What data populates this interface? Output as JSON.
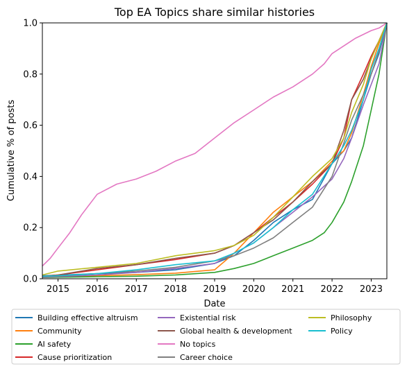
{
  "chart_data": {
    "type": "line",
    "title": "Top EA Topics share similar histories",
    "xlabel": "Date",
    "ylabel": "Cumulative % of posts",
    "xlim": [
      2014.6,
      2023.4
    ],
    "ylim": [
      0,
      1.0
    ],
    "xticks": [
      2015,
      2016,
      2017,
      2018,
      2019,
      2020,
      2021,
      2022,
      2023
    ],
    "yticks": [
      0.0,
      0.2,
      0.4,
      0.6,
      0.8,
      1.0
    ],
    "grid": false,
    "legend_position": "bottom, outside plot, 3 columns",
    "series": [
      {
        "name": "Building effective altruism",
        "color": "#1f77b4",
        "x": [
          2014.6,
          2015,
          2016,
          2017,
          2018,
          2019,
          2019.5,
          2020,
          2020.5,
          2021,
          2021.5,
          2022,
          2022.3,
          2022.5,
          2022.8,
          2023,
          2023.2,
          2023.4
        ],
        "y": [
          0.012,
          0.014,
          0.02,
          0.025,
          0.035,
          0.06,
          0.09,
          0.15,
          0.22,
          0.27,
          0.31,
          0.45,
          0.5,
          0.55,
          0.7,
          0.8,
          0.88,
          1.0
        ]
      },
      {
        "name": "Community",
        "color": "#ff7f0e",
        "x": [
          2014.6,
          2015,
          2016,
          2017,
          2018,
          2019,
          2019.5,
          2020,
          2020.5,
          2021,
          2021.5,
          2022,
          2022.3,
          2022.5,
          2022.8,
          2023,
          2023.2,
          2023.4
        ],
        "y": [
          0.006,
          0.008,
          0.012,
          0.016,
          0.022,
          0.035,
          0.1,
          0.18,
          0.26,
          0.32,
          0.38,
          0.46,
          0.5,
          0.57,
          0.72,
          0.83,
          0.92,
          1.0
        ]
      },
      {
        "name": "AI safety",
        "color": "#2ca02c",
        "x": [
          2014.6,
          2015,
          2016,
          2017,
          2018,
          2019,
          2019.5,
          2020,
          2020.5,
          2021,
          2021.5,
          2021.8,
          2022,
          2022.3,
          2022.5,
          2022.8,
          2023,
          2023.2,
          2023.4
        ],
        "y": [
          0.005,
          0.006,
          0.008,
          0.01,
          0.015,
          0.025,
          0.04,
          0.06,
          0.09,
          0.12,
          0.15,
          0.18,
          0.22,
          0.3,
          0.38,
          0.52,
          0.66,
          0.8,
          1.0
        ]
      },
      {
        "name": "Cause prioritization",
        "color": "#d62728",
        "x": [
          2014.6,
          2015,
          2016,
          2017,
          2018,
          2019,
          2019.5,
          2020,
          2020.5,
          2021,
          2021.5,
          2022,
          2022.3,
          2022.5,
          2022.8,
          2023,
          2023.2,
          2023.4
        ],
        "y": [
          0.01,
          0.015,
          0.035,
          0.055,
          0.075,
          0.1,
          0.13,
          0.18,
          0.24,
          0.3,
          0.37,
          0.45,
          0.55,
          0.7,
          0.8,
          0.87,
          0.93,
          1.0
        ]
      },
      {
        "name": "Existential risk",
        "color": "#9467bd",
        "x": [
          2014.6,
          2015,
          2016,
          2017,
          2018,
          2019,
          2019.5,
          2020,
          2020.5,
          2021,
          2021.5,
          2022,
          2022.3,
          2022.5,
          2022.8,
          2023,
          2023.2,
          2023.4
        ],
        "y": [
          0.006,
          0.008,
          0.015,
          0.025,
          0.04,
          0.06,
          0.1,
          0.14,
          0.2,
          0.26,
          0.32,
          0.39,
          0.47,
          0.55,
          0.68,
          0.76,
          0.84,
          1.0
        ]
      },
      {
        "name": "Global health & development",
        "color": "#8c564b",
        "x": [
          2014.6,
          2015,
          2016,
          2017,
          2018,
          2019,
          2019.5,
          2020,
          2020.5,
          2021,
          2021.5,
          2022,
          2022.3,
          2022.5,
          2022.8,
          2023,
          2023.2,
          2023.4
        ],
        "y": [
          0.01,
          0.015,
          0.04,
          0.055,
          0.08,
          0.1,
          0.13,
          0.18,
          0.23,
          0.3,
          0.38,
          0.45,
          0.58,
          0.7,
          0.78,
          0.86,
          0.93,
          1.0
        ]
      },
      {
        "name": "No topics",
        "color": "#e377c2",
        "x": [
          2014.6,
          2014.8,
          2015,
          2015.3,
          2015.6,
          2016,
          2016.5,
          2017,
          2017.5,
          2018,
          2018.5,
          2019,
          2019.5,
          2020,
          2020.5,
          2021,
          2021.5,
          2021.8,
          2022,
          2022.3,
          2022.6,
          2023,
          2023.2,
          2023.4
        ],
        "y": [
          0.05,
          0.08,
          0.12,
          0.18,
          0.25,
          0.33,
          0.37,
          0.39,
          0.42,
          0.46,
          0.49,
          0.55,
          0.61,
          0.66,
          0.71,
          0.75,
          0.8,
          0.84,
          0.88,
          0.91,
          0.94,
          0.97,
          0.98,
          1.0
        ]
      },
      {
        "name": "Career choice",
        "color": "#7f7f7f",
        "x": [
          2014.6,
          2015,
          2016,
          2017,
          2018,
          2019,
          2019.5,
          2020,
          2020.5,
          2021,
          2021.5,
          2022,
          2022.3,
          2022.5,
          2022.8,
          2023,
          2023.2,
          2023.4
        ],
        "y": [
          0.008,
          0.01,
          0.02,
          0.03,
          0.045,
          0.07,
          0.09,
          0.12,
          0.16,
          0.22,
          0.28,
          0.4,
          0.53,
          0.62,
          0.72,
          0.8,
          0.89,
          1.0
        ]
      },
      {
        "name": "Philosophy",
        "color": "#bcbd22",
        "x": [
          2014.6,
          2015,
          2016,
          2017,
          2018,
          2019,
          2019.5,
          2020,
          2020.5,
          2021,
          2021.5,
          2022,
          2022.3,
          2022.5,
          2022.8,
          2023,
          2023.2,
          2023.4
        ],
        "y": [
          0.015,
          0.03,
          0.045,
          0.06,
          0.09,
          0.11,
          0.13,
          0.17,
          0.24,
          0.32,
          0.4,
          0.47,
          0.55,
          0.65,
          0.76,
          0.86,
          0.93,
          1.0
        ]
      },
      {
        "name": "Policy",
        "color": "#17becf",
        "x": [
          2014.6,
          2015,
          2016,
          2017,
          2018,
          2019,
          2019.5,
          2020,
          2020.5,
          2021,
          2021.5,
          2022,
          2022.3,
          2022.5,
          2022.8,
          2023,
          2023.2,
          2023.4
        ],
        "y": [
          0.01,
          0.012,
          0.02,
          0.035,
          0.055,
          0.07,
          0.1,
          0.14,
          0.2,
          0.27,
          0.33,
          0.45,
          0.52,
          0.58,
          0.7,
          0.82,
          0.9,
          1.0
        ]
      }
    ]
  }
}
